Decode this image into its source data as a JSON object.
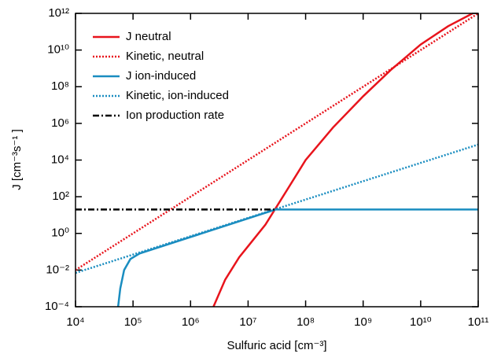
{
  "chart_data": {
    "type": "line",
    "xlabel": "Sulfuric acid [cm⁻³]",
    "ylabel": "J [cm⁻³s⁻¹ ]",
    "xscale": "log",
    "yscale": "log",
    "xlim": [
      10000,
      100000000000
    ],
    "ylim": [
      0.0001,
      1000000000000
    ],
    "xticks": [
      {
        "value": 10000,
        "label": "10⁴"
      },
      {
        "value": 100000,
        "label": "10⁵"
      },
      {
        "value": 1000000,
        "label": "10⁶"
      },
      {
        "value": 10000000,
        "label": "10⁷"
      },
      {
        "value": 100000000,
        "label": "10⁸"
      },
      {
        "value": 1000000000,
        "label": "10⁹"
      },
      {
        "value": 10000000000,
        "label": "10¹⁰"
      },
      {
        "value": 100000000000,
        "label": "10¹¹"
      }
    ],
    "yticks": [
      {
        "value": 0.0001,
        "label": "10⁻⁴"
      },
      {
        "value": 0.01,
        "label": "10⁻²"
      },
      {
        "value": 1,
        "label": "10⁰"
      },
      {
        "value": 100,
        "label": "10²"
      },
      {
        "value": 10000,
        "label": "10⁴"
      },
      {
        "value": 1000000,
        "label": "10⁶"
      },
      {
        "value": 100000000,
        "label": "10⁸"
      },
      {
        "value": 10000000000,
        "label": "10¹⁰"
      },
      {
        "value": 1000000000000,
        "label": "10¹²"
      }
    ],
    "legend": "upper left",
    "series": [
      {
        "name": "J neutral",
        "color": "#e8141c",
        "style": "solid",
        "x": [
          2500000,
          4000000,
          7000000,
          10000000,
          20000000,
          50000000,
          100000000,
          300000000,
          1000000000,
          3000000000,
          10000000000,
          30000000000,
          80000000000
        ],
        "values": [
          0.0001,
          0.003,
          0.05,
          0.2,
          3,
          300,
          10000,
          600000,
          30000000,
          800000000,
          20000000000,
          200000000000,
          1000000000000
        ]
      },
      {
        "name": "Kinetic, neutral",
        "color": "#e8141c",
        "style": "dotted",
        "x": [
          10000,
          100000,
          1000000,
          10000000,
          100000000,
          1000000000,
          10000000000,
          100000000000
        ],
        "values": [
          0.01,
          1,
          100,
          10000,
          1000000,
          100000000,
          10000000000,
          1000000000000
        ]
      },
      {
        "name": "J ion-induced",
        "color": "#1a8dc0",
        "style": "solid",
        "x": [
          55000,
          60000,
          70000,
          90000,
          130000,
          30000000,
          100000000000
        ],
        "values": [
          0.0001,
          0.001,
          0.01,
          0.04,
          0.08,
          20,
          20
        ]
      },
      {
        "name": "Kinetic, ion-induced",
        "color": "#1a8dc0",
        "style": "dotted",
        "x": [
          10000,
          100000,
          1000000,
          10000000,
          100000000,
          1000000000,
          10000000000,
          100000000000
        ],
        "values": [
          0.007,
          0.07,
          0.7,
          7,
          70,
          700,
          7000,
          70000
        ]
      },
      {
        "name": "Ion production rate",
        "color": "#000000",
        "style": "dashdot",
        "x": [
          10000,
          30000000
        ],
        "values": [
          20,
          20
        ]
      }
    ]
  }
}
